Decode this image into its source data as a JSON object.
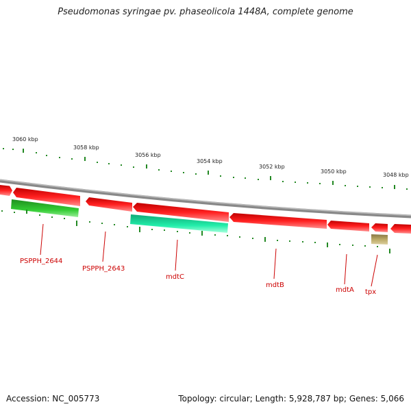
{
  "title": "Pseudomonas syringae pv. phaseolicola 1448A, complete genome",
  "kbp_labels": [
    "3060 kbp",
    "3058 kbp",
    "3056 kbp",
    "3054 kbp",
    "3052 kbp",
    "3050 kbp",
    "3048 kbp"
  ],
  "gene_labels": [
    "PSPPH_2644",
    "PSPPH_2643",
    "mdtC",
    "mdtB",
    "mdtA",
    "tpx"
  ],
  "colors": {
    "forward_gene": "#ee1111",
    "reverse_green": "#33cc33",
    "reverse_teal": "#22eeaa",
    "reverse_khaki": "#bbaa66",
    "backbone": "#888888",
    "ticks": "#228822",
    "label": "#cc0000"
  },
  "footer": {
    "accession": "Accession: NC_005773",
    "summary": "Topology: circular; Length: 5,928,787 bp; Genes: 5,066"
  }
}
